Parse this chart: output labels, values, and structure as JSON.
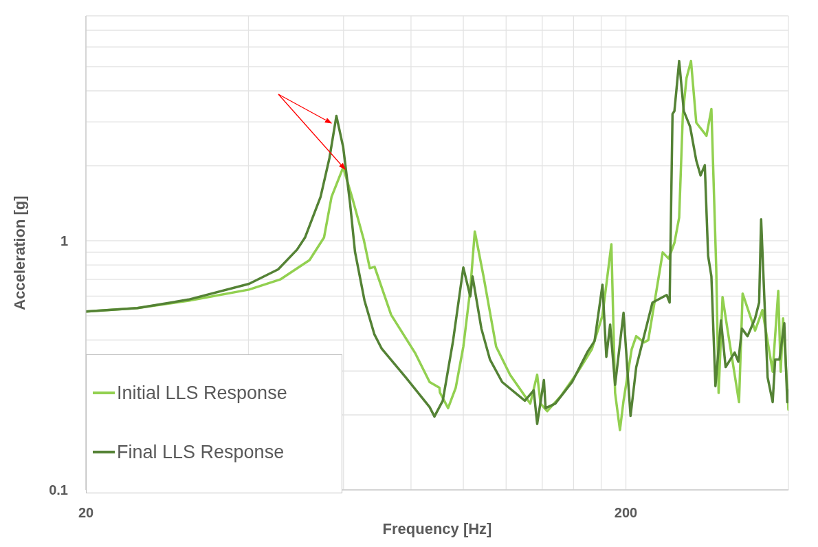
{
  "chart_data": {
    "type": "line",
    "xlabel": "Frequency [Hz]",
    "ylabel": "Acceleration [g]",
    "log": "xy",
    "grid": true,
    "legend": "bottom left",
    "marker": "none",
    "line_style": "solid",
    "xlim": [
      20,
      400
    ],
    "ylim": [
      0.1,
      8
    ],
    "xticks": [
      20,
      {
        "value": 40,
        "label": null
      },
      {
        "value": 60,
        "label": null
      },
      {
        "value": 80,
        "label": null
      },
      {
        "value": 100,
        "label": null
      },
      {
        "value": 120,
        "label": null
      },
      {
        "value": 140,
        "label": null
      },
      {
        "value": 160,
        "label": null
      },
      {
        "value": 180,
        "label": null
      },
      200,
      {
        "value": 400,
        "label": null
      }
    ],
    "yticks": [
      0.1,
      {
        "value": 0.2,
        "label": null
      },
      {
        "value": 0.3,
        "label": null
      },
      {
        "value": 0.4,
        "label": null
      },
      {
        "value": 0.5,
        "label": null
      },
      {
        "value": 0.6,
        "label": null
      },
      {
        "value": 0.7,
        "label": null
      },
      {
        "value": 0.8,
        "label": null
      },
      {
        "value": 0.9,
        "label": null
      },
      1,
      {
        "value": 2,
        "label": null
      },
      {
        "value": 3,
        "label": null
      },
      {
        "value": 4,
        "label": null
      },
      {
        "value": 5,
        "label": null
      },
      {
        "value": 6,
        "label": null
      },
      {
        "value": 7,
        "label": null
      },
      {
        "value": 8,
        "label": null
      }
    ],
    "series": [
      {
        "name": "Initial LLS Response",
        "color": "#92d050",
        "x": [
          20,
          24.9,
          31.0,
          40.1,
          45.9,
          51.9,
          55.2,
          57.0,
          59.9,
          62.2,
          65.4,
          67.1,
          68.5,
          73.5,
          81.5,
          86.6,
          90.3,
          90.5,
          93.7,
          96.8,
          100,
          103,
          105,
          109,
          115,
          122,
          133,
          137,
          139,
          143,
          152,
          163,
          173,
          181,
          188,
          191,
          195,
          198,
          205,
          209,
          216,
          220,
          228,
          234,
          240,
          246,
          251,
          255,
          259,
          264,
          270,
          282,
          288,
          294,
          297,
          302,
          308,
          324,
          329,
          347,
          358,
          374,
          383,
          387,
          391,
          400
        ],
        "values": [
          0.52,
          0.537,
          0.575,
          0.637,
          0.701,
          0.837,
          1.03,
          1.5,
          1.97,
          1.5,
          1.01,
          0.776,
          0.786,
          0.504,
          0.353,
          0.271,
          0.257,
          0.246,
          0.213,
          0.257,
          0.376,
          0.637,
          1.09,
          0.719,
          0.376,
          0.29,
          0.222,
          0.29,
          0.222,
          0.207,
          0.24,
          0.298,
          0.367,
          0.501,
          0.969,
          0.245,
          0.174,
          0.228,
          0.367,
          0.414,
          0.391,
          0.399,
          0.637,
          0.898,
          0.848,
          0.981,
          1.24,
          3.23,
          4.5,
          5.27,
          2.98,
          2.64,
          3.38,
          0.771,
          0.245,
          0.594,
          0.45,
          0.225,
          0.614,
          0.436,
          0.527,
          0.298,
          0.629,
          0.298,
          0.488,
          0.21
        ]
      },
      {
        "name": "Final LLS Response",
        "color": "#548235",
        "x": [
          20,
          24.9,
          31.0,
          40.1,
          45.4,
          49.2,
          50.9,
          54.4,
          56.5,
          58.2,
          59.9,
          61.7,
          63.0,
          65.6,
          68.4,
          70.6,
          78.2,
          86.6,
          88.4,
          91.6,
          95.7,
          100,
          103,
          104,
          108,
          112,
          118,
          130,
          135,
          137,
          141,
          142,
          148,
          159,
          170,
          175,
          181,
          184,
          187,
          191,
          198,
          204,
          209,
          224,
          238,
          241,
          244,
          246,
          251,
          256,
          263,
          270,
          275,
          280,
          284,
          288,
          293,
          300,
          306,
          318,
          323,
          328,
          336,
          347,
          353,
          356,
          366,
          374,
          378,
          385,
          393,
          398,
          400
        ],
        "values": [
          0.52,
          0.537,
          0.581,
          0.672,
          0.768,
          0.921,
          1.03,
          1.5,
          2.15,
          3.17,
          2.38,
          1.41,
          0.904,
          0.576,
          0.422,
          0.369,
          0.283,
          0.215,
          0.197,
          0.228,
          0.396,
          0.781,
          0.598,
          0.719,
          0.444,
          0.334,
          0.271,
          0.228,
          0.251,
          0.184,
          0.276,
          0.213,
          0.222,
          0.271,
          0.36,
          0.396,
          0.666,
          0.342,
          0.461,
          0.264,
          0.514,
          0.198,
          0.311,
          0.565,
          0.606,
          0.565,
          3.23,
          3.32,
          5.27,
          3.32,
          2.87,
          2.1,
          1.83,
          2.01,
          0.87,
          0.719,
          0.261,
          0.479,
          0.311,
          0.356,
          0.327,
          0.444,
          0.414,
          0.488,
          0.565,
          1.22,
          0.283,
          0.225,
          0.334,
          0.334,
          0.467,
          0.225,
          0.251
        ]
      }
    ]
  }
}
